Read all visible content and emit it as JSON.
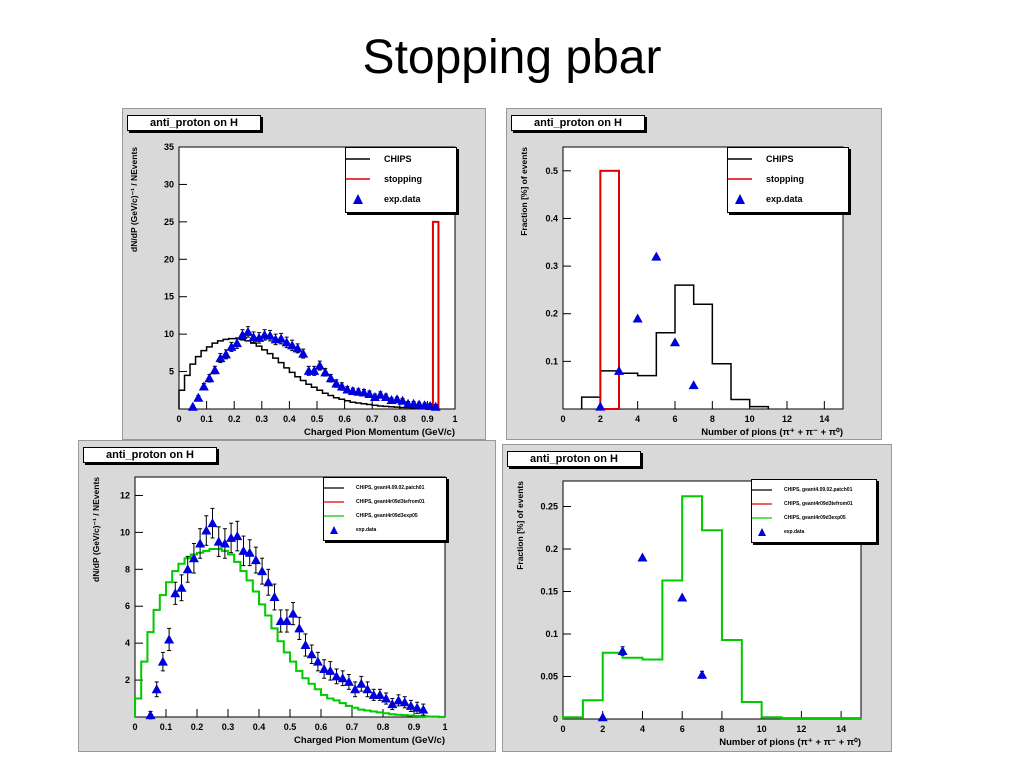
{
  "slide": {
    "title": "Stopping pbar"
  },
  "colors": {
    "chips": "#000000",
    "stopping": "#e00000",
    "expdata": "#0000dd",
    "green": "#00cc00",
    "panel": "#d9d9d9"
  },
  "chart_data": [
    {
      "type": "line",
      "panel_title": "anti_proton on H",
      "xlabel": "Charged Pion Momentum (GeV/c)",
      "ylabel": "dN/dP (GeV/c)⁻¹ / NEvents",
      "xlim": [
        0,
        1
      ],
      "ylim": [
        0,
        35
      ],
      "xticks": [
        "0",
        "0.1",
        "0.2",
        "0.3",
        "0.4",
        "0.5",
        "0.6",
        "0.7",
        "0.8",
        "0.9",
        "1"
      ],
      "yticks": [
        "5",
        "10",
        "15",
        "20",
        "25",
        "30",
        "35"
      ],
      "legend": [
        {
          "label": "CHIPS",
          "kind": "line",
          "color": "#000000"
        },
        {
          "label": "stopping",
          "kind": "line",
          "color": "#e00000"
        },
        {
          "label": "exp.data",
          "kind": "triangle",
          "color": "#0000dd"
        }
      ],
      "series": [
        {
          "name": "CHIPS",
          "kind": "step",
          "bin_width": 0.02,
          "x": [
            0.01,
            0.03,
            0.05,
            0.07,
            0.09,
            0.11,
            0.13,
            0.15,
            0.17,
            0.19,
            0.21,
            0.23,
            0.25,
            0.27,
            0.29,
            0.31,
            0.33,
            0.35,
            0.37,
            0.39,
            0.41,
            0.43,
            0.45,
            0.47,
            0.49,
            0.51,
            0.53,
            0.55,
            0.57,
            0.59,
            0.61,
            0.63,
            0.65,
            0.67,
            0.69,
            0.71,
            0.73,
            0.75,
            0.77,
            0.79,
            0.81,
            0.83,
            0.85,
            0.87,
            0.89,
            0.91,
            0.93
          ],
          "values": [
            2.5,
            4.5,
            6.0,
            7.0,
            7.8,
            8.3,
            8.8,
            9.1,
            9.3,
            9.4,
            9.4,
            9.3,
            9.1,
            8.8,
            8.4,
            7.9,
            7.4,
            6.8,
            6.2,
            5.5,
            4.9,
            4.3,
            3.8,
            3.3,
            2.9,
            2.5,
            2.1,
            1.8,
            1.5,
            1.3,
            1.1,
            0.9,
            0.8,
            0.7,
            0.6,
            0.5,
            0.4,
            0.35,
            0.3,
            0.25,
            0.2,
            0.18,
            0.15,
            0.12,
            0.1,
            0.08,
            0.05
          ]
        },
        {
          "name": "stopping",
          "kind": "bar",
          "bin": [
            0.92,
            0.94
          ],
          "values": [
            25
          ]
        },
        {
          "name": "exp.data",
          "kind": "points",
          "x": [
            0.05,
            0.07,
            0.09,
            0.11,
            0.13,
            0.15,
            0.17,
            0.19,
            0.21,
            0.23,
            0.25,
            0.27,
            0.29,
            0.31,
            0.33,
            0.35,
            0.37,
            0.39,
            0.41,
            0.43,
            0.45,
            0.47,
            0.49,
            0.51,
            0.53,
            0.55,
            0.57,
            0.59,
            0.61,
            0.63,
            0.65,
            0.67,
            0.69,
            0.71,
            0.73,
            0.75,
            0.77,
            0.79,
            0.81,
            0.83,
            0.85,
            0.87,
            0.89,
            0.91,
            0.93
          ],
          "values": [
            0.3,
            1.5,
            3.0,
            4.1,
            5.2,
            6.8,
            7.3,
            8.3,
            8.8,
            9.9,
            10.3,
            9.6,
            9.5,
            9.9,
            9.8,
            9.3,
            9.4,
            8.9,
            8.5,
            8.1,
            7.4,
            5.1,
            5.1,
            5.8,
            4.9,
            4.1,
            3.4,
            3.0,
            2.6,
            2.4,
            2.3,
            2.2,
            2.0,
            1.6,
            1.9,
            1.6,
            1.2,
            1.3,
            1.1,
            0.7,
            0.7,
            0.6,
            0.5,
            0.4,
            0.3
          ],
          "errors": [
            0.2,
            0.3,
            0.4,
            0.5,
            0.5,
            0.6,
            0.6,
            0.6,
            0.7,
            0.7,
            0.7,
            0.7,
            0.7,
            0.7,
            0.7,
            0.7,
            0.7,
            0.7,
            0.7,
            0.6,
            0.6,
            0.6,
            0.6,
            0.6,
            0.5,
            0.5,
            0.5,
            0.5,
            0.4,
            0.4,
            0.4,
            0.4,
            0.4,
            0.4,
            0.4,
            0.4,
            0.3,
            0.3,
            0.3,
            0.3,
            0.3,
            0.3,
            0.3,
            0.3,
            0.3
          ]
        }
      ]
    },
    {
      "type": "bar",
      "panel_title": "anti_proton on H",
      "xlabel": "Number of pions (π⁺ + π⁻ + π⁰)",
      "ylabel": "Fraction [%] of events",
      "xlim": [
        0,
        15
      ],
      "ylim": [
        0,
        0.55
      ],
      "xticks": [
        "0",
        "2",
        "4",
        "6",
        "8",
        "10",
        "12",
        "14"
      ],
      "yticks": [
        "0.1",
        "0.2",
        "0.3",
        "0.4",
        "0.5"
      ],
      "legend": [
        {
          "label": "CHIPS",
          "kind": "line",
          "color": "#000000"
        },
        {
          "label": "stopping",
          "kind": "line",
          "color": "#e00000"
        },
        {
          "label": "exp.data",
          "kind": "triangle",
          "color": "#0000dd"
        }
      ],
      "series": [
        {
          "name": "CHIPS",
          "kind": "step",
          "bin_width": 1,
          "x": [
            1.5,
            2.5,
            3.5,
            4.5,
            5.5,
            6.5,
            7.5,
            8.5,
            9.5,
            10.5
          ],
          "values": [
            0.025,
            0.08,
            0.075,
            0.07,
            0.16,
            0.26,
            0.22,
            0.095,
            0.02,
            0.005
          ]
        },
        {
          "name": "stopping",
          "kind": "bar",
          "bin": [
            2,
            3
          ],
          "values": [
            0.5
          ]
        },
        {
          "name": "exp.data",
          "kind": "points",
          "x": [
            2,
            3,
            4,
            5,
            6,
            7
          ],
          "values": [
            0.005,
            0.08,
            0.19,
            0.32,
            0.14,
            0.05
          ]
        }
      ]
    },
    {
      "type": "line",
      "panel_title": "anti_proton on H",
      "xlabel": "Charged Pion Momentum (GeV/c)",
      "ylabel": "dN/dP (GeV/c)⁻¹ / NEvents",
      "xlim": [
        0,
        1
      ],
      "ylim": [
        0,
        13
      ],
      "xticks": [
        "0",
        "0.1",
        "0.2",
        "0.3",
        "0.4",
        "0.5",
        "0.6",
        "0.7",
        "0.8",
        "0.9",
        "1"
      ],
      "yticks": [
        "2",
        "4",
        "6",
        "8",
        "10",
        "12"
      ],
      "legend": [
        {
          "label": "CHIPS, geant4.09.02.patch01",
          "kind": "line",
          "color": "#000000"
        },
        {
          "label": "CHIPS, geant4r09d3tefrom01",
          "kind": "line",
          "color": "#e00000"
        },
        {
          "label": "CHIPS, geant4r09d3exp05",
          "kind": "line",
          "color": "#00cc00"
        },
        {
          "label": "exp.data",
          "kind": "triangle",
          "color": "#0000dd"
        }
      ],
      "series": [
        {
          "name": "CHIPS",
          "kind": "step",
          "bin_width": 0.02,
          "x": [
            0.01,
            0.03,
            0.05,
            0.07,
            0.09,
            0.11,
            0.13,
            0.15,
            0.17,
            0.19,
            0.21,
            0.23,
            0.25,
            0.27,
            0.29,
            0.31,
            0.33,
            0.35,
            0.37,
            0.39,
            0.41,
            0.43,
            0.45,
            0.47,
            0.49,
            0.51,
            0.53,
            0.55,
            0.57,
            0.59,
            0.61,
            0.63,
            0.65,
            0.67,
            0.69,
            0.71,
            0.73,
            0.75,
            0.77,
            0.79,
            0.81,
            0.83,
            0.85,
            0.87,
            0.89,
            0.91,
            0.93,
            0.95,
            0.97,
            0.99
          ],
          "values": [
            1.0,
            3.0,
            4.6,
            5.8,
            6.6,
            7.3,
            7.9,
            8.3,
            8.6,
            8.8,
            8.9,
            9.0,
            9.1,
            9.1,
            9.0,
            8.8,
            8.4,
            7.9,
            7.4,
            6.8,
            6.1,
            5.5,
            4.8,
            4.1,
            3.5,
            3.0,
            2.5,
            2.1,
            1.8,
            1.5,
            1.2,
            1.0,
            0.9,
            0.75,
            0.6,
            0.5,
            0.4,
            0.35,
            0.3,
            0.25,
            0.2,
            0.15,
            0.12,
            0.1,
            0.08,
            0.06,
            0.05,
            0.03,
            0.02,
            0.01
          ]
        },
        {
          "name": "green",
          "kind": "step",
          "bin_width": 0.02,
          "x": [
            0.01,
            0.03,
            0.05,
            0.07,
            0.09,
            0.11,
            0.13,
            0.15,
            0.17,
            0.19,
            0.21,
            0.23,
            0.25,
            0.27,
            0.29,
            0.31,
            0.33,
            0.35,
            0.37,
            0.39,
            0.41,
            0.43,
            0.45,
            0.47,
            0.49,
            0.51,
            0.53,
            0.55,
            0.57,
            0.59,
            0.61,
            0.63,
            0.65,
            0.67,
            0.69,
            0.71,
            0.73,
            0.75,
            0.77,
            0.79,
            0.81,
            0.83,
            0.85,
            0.87,
            0.89,
            0.91,
            0.93,
            0.95,
            0.97,
            0.99
          ],
          "values": [
            1.0,
            3.0,
            4.6,
            5.8,
            6.6,
            7.3,
            7.9,
            8.3,
            8.6,
            8.8,
            8.9,
            9.0,
            9.1,
            9.1,
            9.0,
            8.8,
            8.4,
            7.9,
            7.4,
            6.8,
            6.1,
            5.5,
            4.8,
            4.1,
            3.5,
            3.0,
            2.5,
            2.1,
            1.8,
            1.5,
            1.2,
            1.0,
            0.9,
            0.75,
            0.6,
            0.5,
            0.4,
            0.35,
            0.3,
            0.25,
            0.2,
            0.15,
            0.12,
            0.1,
            0.08,
            0.06,
            0.05,
            0.03,
            0.02,
            0.01
          ]
        },
        {
          "name": "exp.data",
          "kind": "points",
          "x": [
            0.05,
            0.07,
            0.09,
            0.11,
            0.13,
            0.15,
            0.17,
            0.19,
            0.21,
            0.23,
            0.25,
            0.27,
            0.29,
            0.31,
            0.33,
            0.35,
            0.37,
            0.39,
            0.41,
            0.43,
            0.45,
            0.47,
            0.49,
            0.51,
            0.53,
            0.55,
            0.57,
            0.59,
            0.61,
            0.63,
            0.65,
            0.67,
            0.69,
            0.71,
            0.73,
            0.75,
            0.77,
            0.79,
            0.81,
            0.83,
            0.85,
            0.87,
            0.89,
            0.91,
            0.93
          ],
          "values": [
            0.1,
            1.5,
            3.0,
            4.2,
            6.7,
            7.0,
            8.0,
            8.6,
            9.4,
            10.1,
            10.5,
            9.5,
            9.4,
            9.7,
            9.8,
            9.0,
            8.9,
            8.5,
            7.9,
            7.3,
            6.5,
            5.2,
            5.2,
            5.6,
            4.8,
            3.9,
            3.4,
            3.0,
            2.6,
            2.5,
            2.2,
            2.1,
            1.9,
            1.5,
            1.8,
            1.5,
            1.2,
            1.2,
            1.0,
            0.7,
            0.9,
            0.8,
            0.6,
            0.5,
            0.4
          ],
          "errors": [
            0.2,
            0.4,
            0.5,
            0.6,
            0.6,
            0.7,
            0.7,
            0.8,
            0.8,
            0.8,
            0.8,
            0.8,
            0.8,
            0.8,
            0.8,
            0.8,
            0.7,
            0.7,
            0.7,
            0.7,
            0.7,
            0.6,
            0.6,
            0.6,
            0.6,
            0.6,
            0.5,
            0.5,
            0.5,
            0.5,
            0.4,
            0.4,
            0.4,
            0.4,
            0.4,
            0.4,
            0.3,
            0.3,
            0.3,
            0.3,
            0.3,
            0.3,
            0.3,
            0.3,
            0.3
          ]
        }
      ]
    },
    {
      "type": "bar",
      "panel_title": "anti_proton on H",
      "xlabel": "Number of pions (π⁺ + π⁻ + π⁰)",
      "ylabel": "Fraction [%] of events",
      "xlim": [
        0,
        15
      ],
      "ylim": [
        0,
        0.28
      ],
      "xticks": [
        "0",
        "2",
        "4",
        "6",
        "8",
        "10",
        "12",
        "14"
      ],
      "yticks": [
        "0",
        "0.05",
        "0.1",
        "0.15",
        "0.2",
        "0.25"
      ],
      "legend": [
        {
          "label": "CHIPS, geant4.09.02.patch01",
          "kind": "line",
          "color": "#000000"
        },
        {
          "label": "CHIPS, geant4r09d3tefrom01",
          "kind": "line",
          "color": "#e00000"
        },
        {
          "label": "CHIPS, geant4r09d3exp05",
          "kind": "line",
          "color": "#00cc00"
        },
        {
          "label": "exp.data",
          "kind": "triangle",
          "color": "#0000dd"
        }
      ],
      "series": [
        {
          "name": "CHIPS",
          "kind": "step",
          "bin_width": 1,
          "x": [
            0.5,
            1.5,
            2.5,
            3.5,
            4.5,
            5.5,
            6.5,
            7.5,
            8.5,
            9.5,
            10.5,
            11.5,
            12.5,
            13.5,
            14.5
          ],
          "values": [
            0.002,
            0.022,
            0.078,
            0.072,
            0.07,
            0.163,
            0.262,
            0.222,
            0.093,
            0.02,
            0.002,
            0.001,
            0.001,
            0.001,
            0.001
          ]
        },
        {
          "name": "green",
          "kind": "step",
          "bin_width": 1,
          "x": [
            0.5,
            1.5,
            2.5,
            3.5,
            4.5,
            5.5,
            6.5,
            7.5,
            8.5,
            9.5,
            10.5,
            11.5,
            12.5,
            13.5,
            14.5
          ],
          "values": [
            0.002,
            0.022,
            0.078,
            0.072,
            0.07,
            0.163,
            0.262,
            0.222,
            0.093,
            0.02,
            0.002,
            0.001,
            0.001,
            0.001,
            0.001
          ]
        },
        {
          "name": "exp.data",
          "kind": "points",
          "x": [
            2,
            3,
            4,
            6,
            7
          ],
          "values": [
            0.002,
            0.08,
            0.19,
            0.143,
            0.052
          ],
          "errors": [
            0.0,
            0.005,
            0.0,
            0.0,
            0.004
          ]
        }
      ]
    }
  ]
}
